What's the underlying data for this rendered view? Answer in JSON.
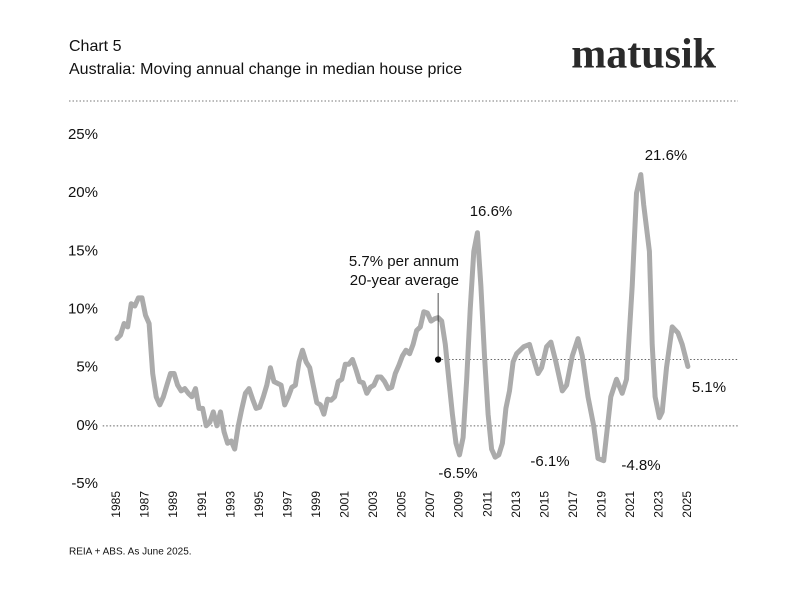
{
  "chart_data": {
    "type": "line",
    "chart_label": "Chart 5",
    "title": "Australia: Moving annual change in median house price",
    "brand": "matusik",
    "source": "REIA + ABS.  As June 2025.",
    "x": [
      1985,
      1985.25,
      1985.5,
      1985.75,
      1986,
      1986.25,
      1986.5,
      1986.75,
      1987,
      1987.25,
      1987.5,
      1987.75,
      1988,
      1988.25,
      1988.5,
      1988.75,
      1989,
      1989.25,
      1989.5,
      1989.75,
      1990,
      1990.25,
      1990.5,
      1990.75,
      1991,
      1991.25,
      1991.5,
      1991.75,
      1992,
      1992.25,
      1992.5,
      1992.75,
      1993,
      1993.25,
      1993.5,
      1993.75,
      1994,
      1994.25,
      1994.5,
      1994.75,
      1995,
      1995.25,
      1995.5,
      1995.75,
      1996,
      1996.5,
      1996.75,
      1997,
      1997.25,
      1997.5,
      1997.75,
      1998,
      1998.25,
      1998.5,
      1998.75,
      1999,
      1999.25,
      1999.5,
      1999.75,
      2000,
      2000.25,
      2000.5,
      2000.75,
      2001,
      2001.25,
      2001.5,
      2001.75,
      2002,
      2002.25,
      2002.5,
      2002.75,
      2003,
      2003.25,
      2003.5,
      2003.75,
      2004,
      2004.25,
      2004.5,
      2004.75,
      2005,
      2005.25,
      2005.5,
      2005.75,
      2006,
      2006.25,
      2006.5,
      2006.75,
      2007,
      2007.25,
      2007.5,
      2007.75,
      2008,
      2008.25,
      2008.5,
      2008.75,
      2009,
      2009.25,
      2009.5,
      2009.75,
      2010,
      2010.25,
      2010.5,
      2010.75,
      2011,
      2011.25,
      2011.5,
      2011.75,
      2012,
      2012.25,
      2012.5,
      2012.75,
      2013,
      2013.5,
      2013.9,
      2014.25,
      2014.5,
      2014.75,
      2015.1,
      2015.4,
      2015.75,
      2016.2,
      2016.5,
      2016.9,
      2017.3,
      2017.6,
      2018,
      2018.4,
      2018.7,
      2019.1,
      2019.6,
      2020,
      2020.4,
      2020.7,
      2021.1,
      2021.4,
      2021.7,
      2021.9,
      2022.3,
      2022.5,
      2022.7,
      2023,
      2023.2,
      2023.5,
      2023.9,
      2024.3,
      2024.6,
      2025
    ],
    "values": [
      7.5,
      7.8,
      8.8,
      8.5,
      10.5,
      10.3,
      11.0,
      11.0,
      9.5,
      8.8,
      4.5,
      2.5,
      1.8,
      2.5,
      3.5,
      4.5,
      4.5,
      3.5,
      3.0,
      3.2,
      2.8,
      2.5,
      3.2,
      1.5,
      1.5,
      0.0,
      0.3,
      1.2,
      0.0,
      1.2,
      -0.5,
      -1.5,
      -1.3,
      -2.0,
      0.0,
      1.5,
      2.8,
      3.2,
      2.3,
      1.5,
      1.6,
      2.5,
      3.5,
      5.0,
      3.8,
      3.5,
      1.8,
      2.5,
      3.3,
      3.5,
      5.5,
      6.5,
      5.5,
      5.0,
      3.5,
      2.0,
      1.8,
      1.0,
      2.3,
      2.2,
      2.5,
      3.8,
      4.0,
      5.3,
      5.3,
      5.7,
      4.8,
      3.8,
      3.7,
      2.8,
      3.3,
      3.5,
      4.2,
      4.2,
      3.8,
      3.2,
      3.3,
      4.5,
      5.2,
      6.0,
      6.5,
      6.2,
      7.0,
      8.2,
      8.5,
      9.8,
      9.7,
      9.0,
      9.2,
      9.3,
      9.0,
      7.0,
      4.0,
      1.0,
      -1.5,
      -2.5,
      -1.0,
      4.0,
      10.0,
      15.0,
      16.6,
      12.0,
      6.0,
      1.0,
      -2.0,
      -2.7,
      -2.5,
      -1.5,
      1.5,
      3.0,
      5.5,
      6.2,
      6.8,
      7.0,
      5.5,
      4.5,
      5.0,
      6.8,
      7.2,
      5.5,
      3.0,
      3.5,
      6.0,
      7.5,
      6.0,
      2.5,
      0.0,
      -2.8,
      -3.0,
      2.5,
      4.0,
      2.8,
      4.0,
      12.0,
      20.0,
      21.6,
      19.0,
      15.0,
      7.0,
      2.5,
      0.7,
      1.2,
      5.0,
      8.5,
      8.0,
      7.0,
      5.1
    ],
    "color": "#ababab",
    "xlim": [
      1984,
      2029
    ],
    "xticks": [
      1985,
      1987,
      1989,
      1991,
      1993,
      1995,
      1997,
      1999,
      2001,
      2003,
      2005,
      2007,
      2009,
      2011,
      2013,
      2015,
      2017,
      2019,
      2021,
      2023,
      2025
    ],
    "ylim": [
      -5,
      25
    ],
    "yticks": [
      {
        "value": -5,
        "label": "-5%"
      },
      {
        "value": 0,
        "label": "0%"
      },
      {
        "value": 5,
        "label": "5%"
      },
      {
        "value": 10,
        "label": "10%"
      },
      {
        "value": 15,
        "label": "15%"
      },
      {
        "value": 20,
        "label": "20%"
      },
      {
        "value": 25,
        "label": "25%"
      }
    ],
    "zero_line": true,
    "reference_line": {
      "value": 5.7,
      "x": 2007.5,
      "labels": [
        "5.7% per annum",
        "20-year average"
      ]
    },
    "annotations": [
      "16.6%",
      "21.6%",
      "-6.5%",
      "-6.1%",
      "-4.8%",
      "5.1%"
    ]
  }
}
